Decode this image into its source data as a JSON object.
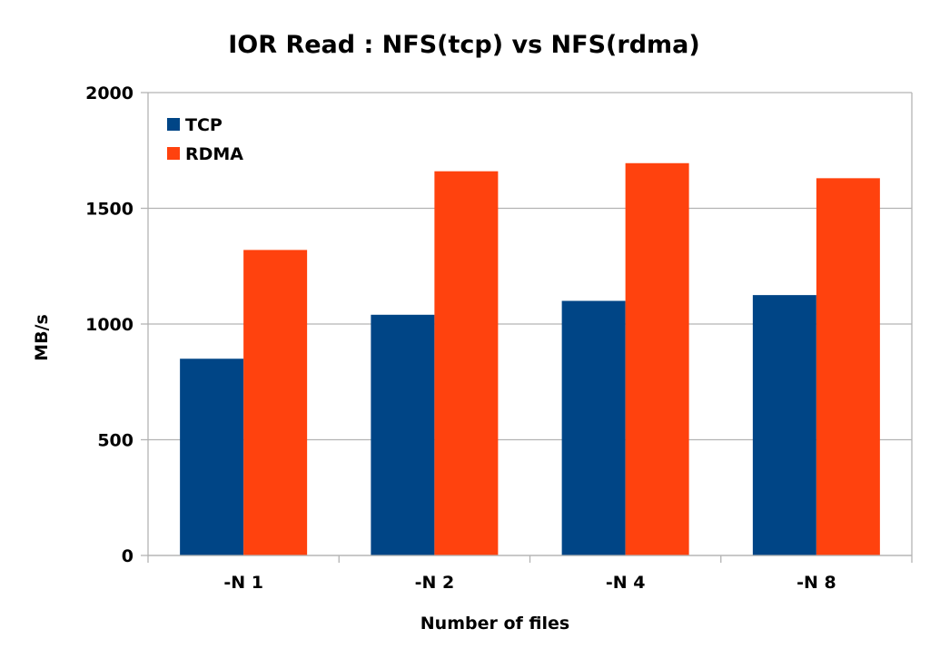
{
  "chart_data": {
    "type": "bar",
    "title": "IOR Read : NFS(tcp) vs NFS(rdma)",
    "xlabel": "Number of files",
    "ylabel": "MB/s",
    "categories": [
      "-N 1",
      "-N 2",
      "-N 4",
      "-N 8"
    ],
    "series": [
      {
        "name": "TCP",
        "color": "#004586",
        "values": [
          850,
          1040,
          1100,
          1125
        ]
      },
      {
        "name": "RDMA",
        "color": "#ff420e",
        "values": [
          1320,
          1660,
          1695,
          1630
        ]
      }
    ],
    "ylim": [
      0,
      2000
    ],
    "yticks": [
      "0",
      "500",
      "1000",
      "1500",
      "2000"
    ],
    "grid": true,
    "legend_position": "top-left"
  }
}
